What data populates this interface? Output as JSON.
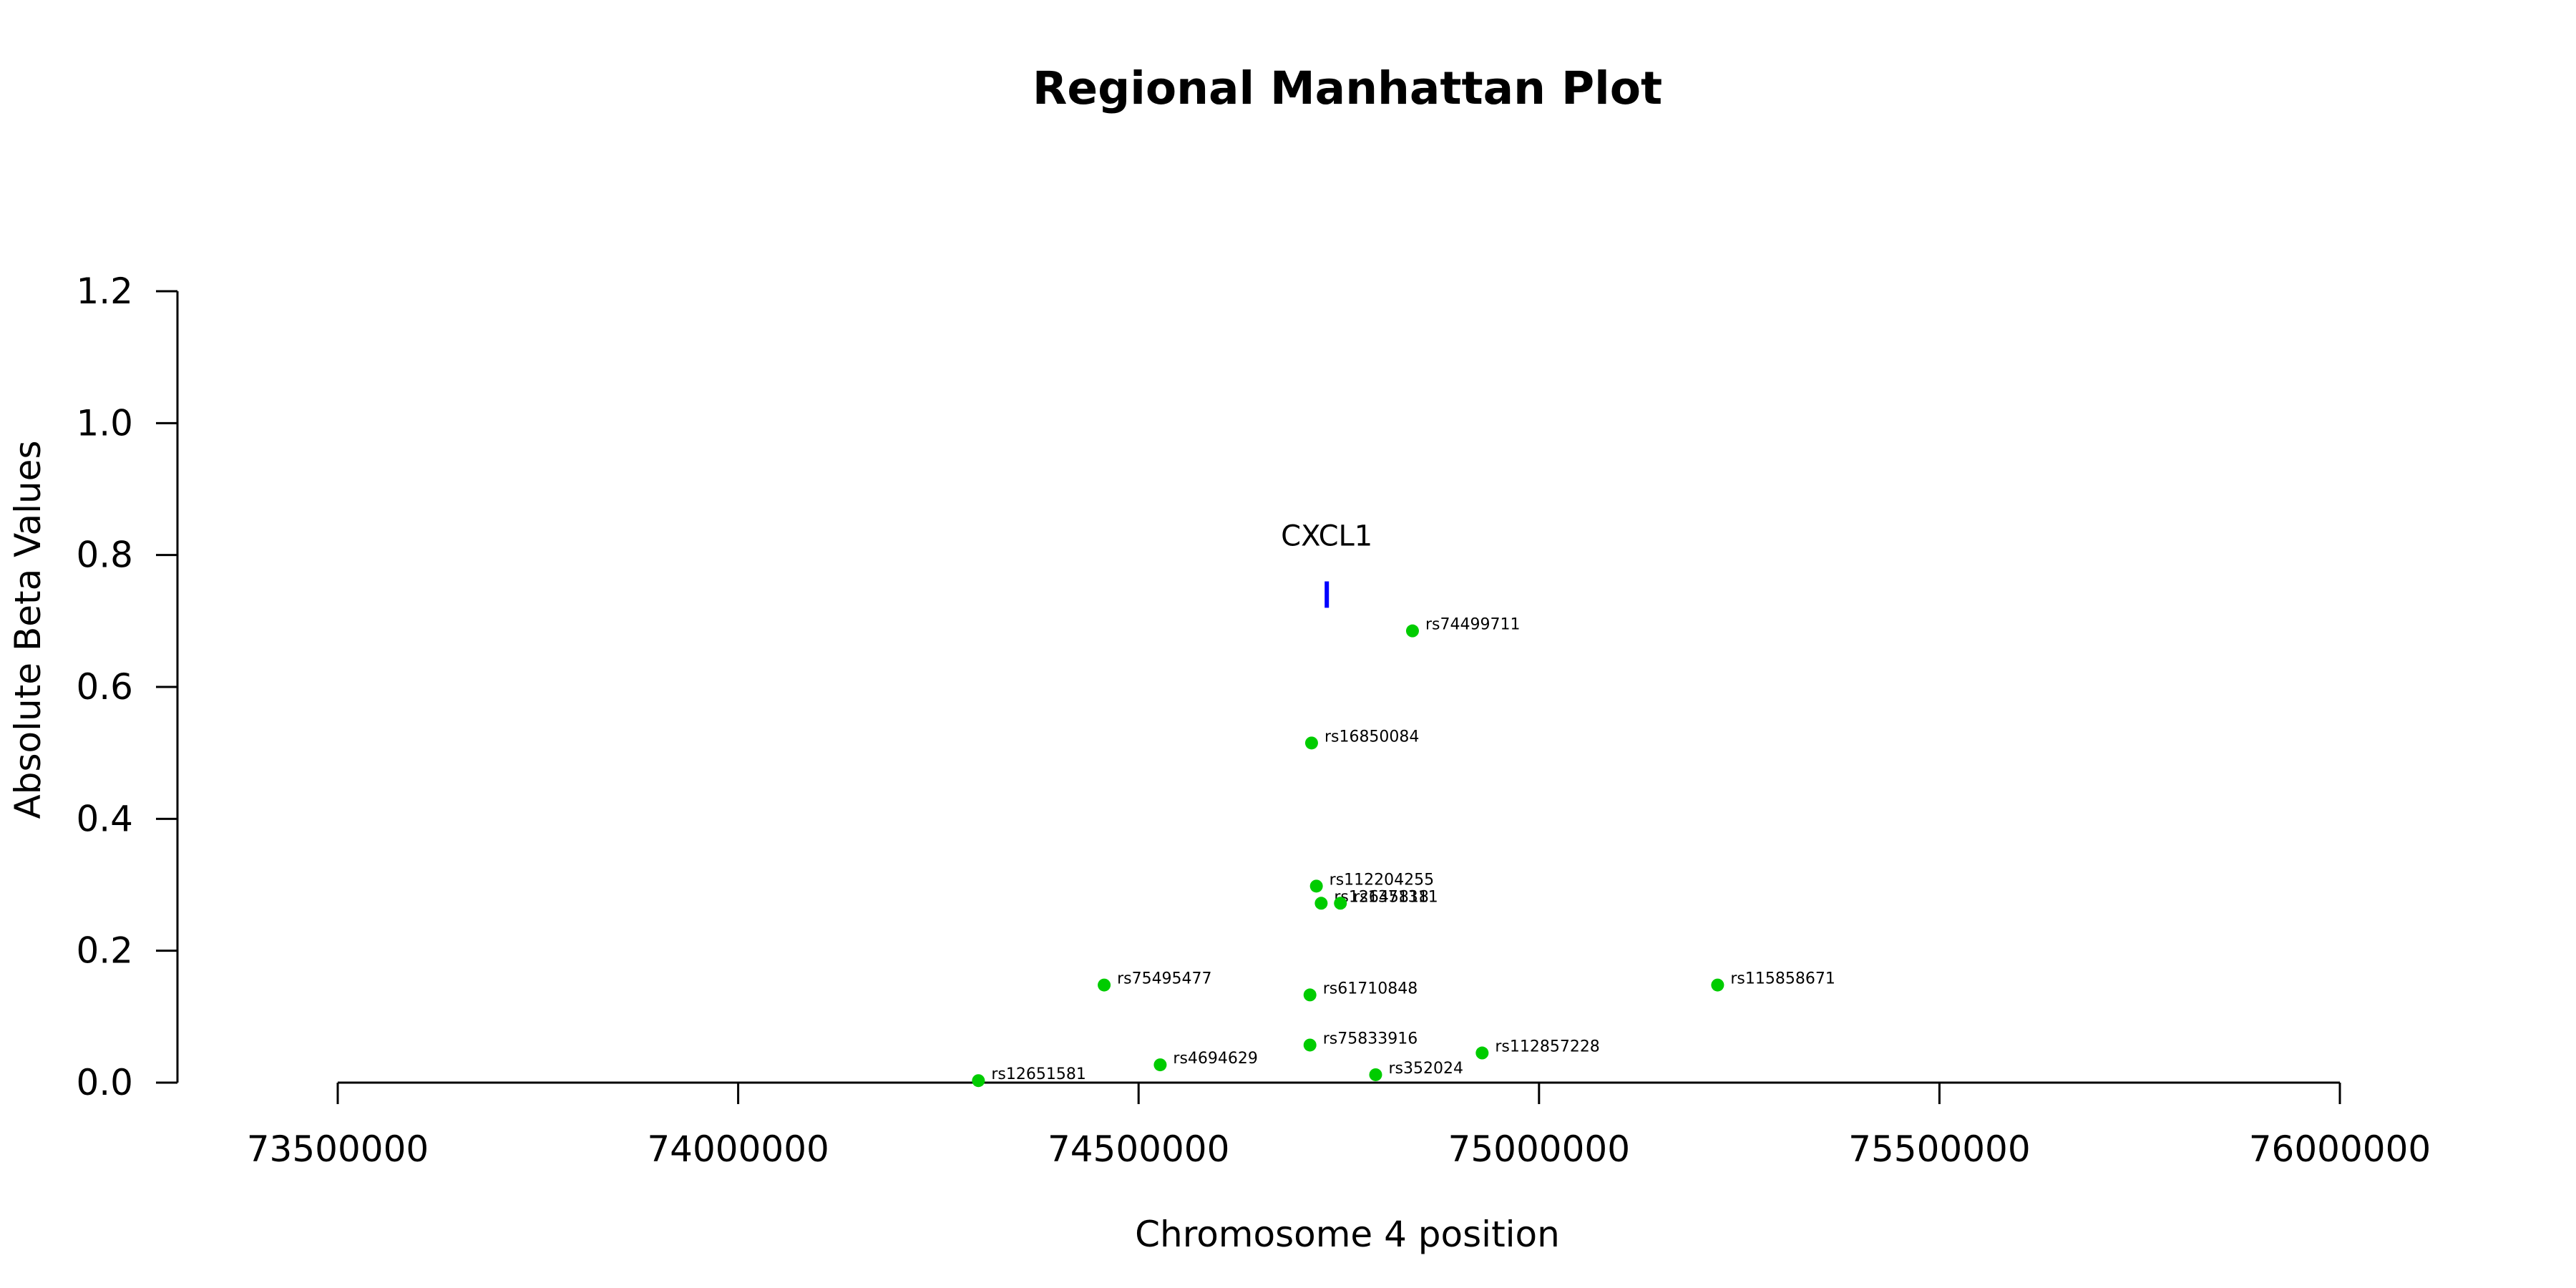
{
  "chart_data": {
    "type": "scatter",
    "title": "Regional Manhattan Plot",
    "xlabel": "Chromosome 4 position",
    "ylabel": "Absolute Beta Values",
    "xlim": [
      73500000,
      76000000
    ],
    "ylim": [
      0,
      1.2
    ],
    "x_ticks": [
      "73500000",
      "74000000",
      "74500000",
      "75000000",
      "75500000",
      "76000000"
    ],
    "y_ticks": [
      "0.0",
      "0.2",
      "0.4",
      "0.6",
      "0.8",
      "1.0",
      "1.2"
    ],
    "point_color": "#00CC00",
    "gene_color": "#0000FF",
    "grid": false,
    "gene": {
      "name": "CXCL1",
      "position": 74735000,
      "y_range": [
        0.72,
        0.76
      ]
    },
    "points": [
      {
        "label": "rs74499711",
        "x": 74842000,
        "y": 0.685
      },
      {
        "label": "rs16850084",
        "x": 74716000,
        "y": 0.515
      },
      {
        "label": "rs112204255",
        "x": 74722000,
        "y": 0.298
      },
      {
        "label": "rs12645818",
        "x": 74728000,
        "y": 0.272
      },
      {
        "label": "rs1371311",
        "x": 74752000,
        "y": 0.272
      },
      {
        "label": "rs75495477",
        "x": 74457000,
        "y": 0.148
      },
      {
        "label": "rs61710848",
        "x": 74714000,
        "y": 0.133
      },
      {
        "label": "rs115858671",
        "x": 75223000,
        "y": 0.148
      },
      {
        "label": "rs75833916",
        "x": 74714000,
        "y": 0.057
      },
      {
        "label": "rs112857228",
        "x": 74929000,
        "y": 0.045
      },
      {
        "label": "rs4694629",
        "x": 74527000,
        "y": 0.027
      },
      {
        "label": "rs352024",
        "x": 74796000,
        "y": 0.012
      },
      {
        "label": "rs12651581",
        "x": 74300000,
        "y": 0.003
      }
    ]
  }
}
